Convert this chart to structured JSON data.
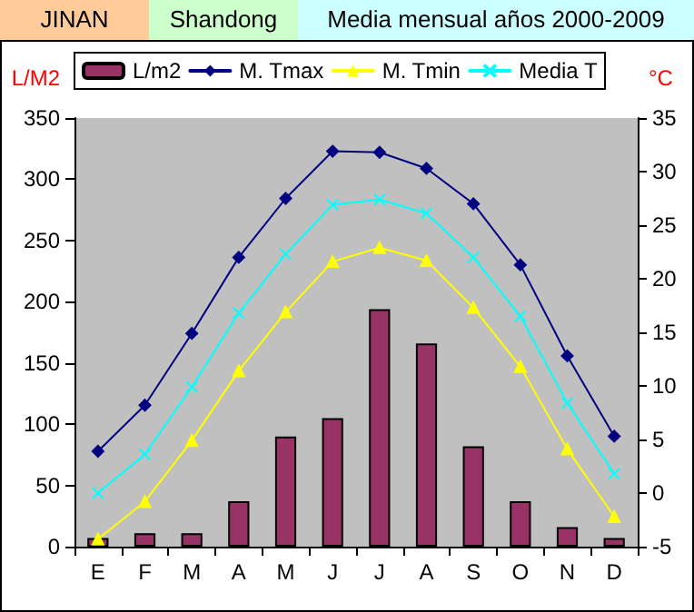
{
  "chart_data": {
    "type": "bar",
    "title": "JINAN",
    "subtitle": "Shandong",
    "annotations": [
      "Media mensual años 2000-2009"
    ],
    "ylabel": "L/M2",
    "y2label": "°C",
    "categories": [
      "E",
      "F",
      "M",
      "A",
      "M",
      "J",
      "J",
      "A",
      "S",
      "O",
      "N",
      "D"
    ],
    "series": [
      {
        "name": "L/m2",
        "color": "#993366",
        "values": [
          7,
          11,
          11,
          37,
          90,
          105,
          194,
          166,
          82,
          37,
          16,
          7
        ]
      },
      {
        "name": "M. Tmax",
        "type": "line",
        "axis": "y2",
        "marker": "diamond",
        "color": "#000080",
        "values": [
          3.9,
          8.2,
          14.9,
          22,
          27.5,
          31.9,
          31.8,
          30.3,
          27,
          21.3,
          12.8,
          5.3
        ]
      },
      {
        "name": "M. Tmin",
        "type": "line",
        "axis": "y2",
        "marker": "triangle",
        "color": "#ffff00",
        "values": [
          -4.3,
          -0.8,
          4.9,
          11.4,
          16.9,
          21.6,
          22.9,
          21.7,
          17.3,
          11.8,
          4.1,
          -2.2
        ]
      },
      {
        "name": "Media T",
        "type": "line",
        "axis": "y2",
        "marker": "cross",
        "color": "#00ffff",
        "values": [
          0,
          3.6,
          9.9,
          16.8,
          22.3,
          26.9,
          27.4,
          26.1,
          22,
          16.5,
          8.4,
          1.8
        ]
      }
    ],
    "ylim": [
      0,
      350
    ],
    "yticks": [
      0,
      50,
      100,
      150,
      200,
      250,
      300,
      350
    ],
    "y2lim": [
      -5,
      35
    ],
    "y2ticks": [
      -5,
      0,
      5,
      10,
      15,
      20,
      25,
      30,
      35
    ],
    "grid": false,
    "legend": "top"
  }
}
